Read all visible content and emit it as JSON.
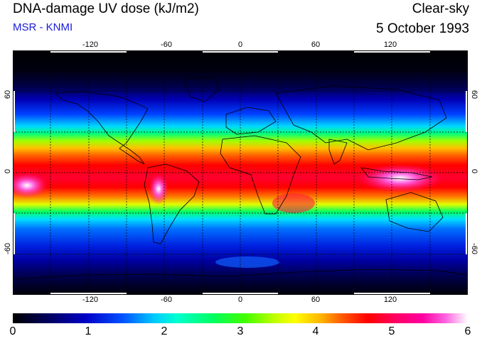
{
  "header": {
    "title": "DNA-damage UV dose (kJ/m2)",
    "subtitle": "MSR - KNMI",
    "condition": "Clear-sky",
    "date": "5 October 1993"
  },
  "map": {
    "lon_ticks": [
      "-120",
      "-60",
      "0",
      "60",
      "120"
    ],
    "lat_ticks": [
      "60",
      "0",
      "-60"
    ],
    "colors": {
      "graticule": "#000000",
      "coastline": "#000000"
    }
  },
  "colorbar": {
    "ticks": [
      "0",
      "1",
      "2",
      "3",
      "4",
      "5",
      "6"
    ],
    "min": 0,
    "max": 6
  }
}
